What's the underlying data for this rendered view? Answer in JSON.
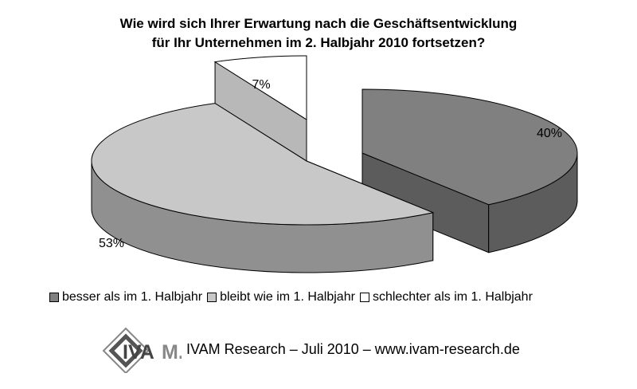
{
  "title": {
    "line1": "Wie wird sich Ihrer Erwartung nach die Geschäftsentwicklung",
    "line2": "für Ihr Unternehmen im 2. Halbjahr 2010 fortsetzen?"
  },
  "chart_data": {
    "type": "pie",
    "style": "3d-exploded",
    "title": "Wie wird sich Ihrer Erwartung nach die Geschäftsentwicklung für Ihr Unternehmen im 2. Halbjahr 2010 fortsetzen?",
    "slices": [
      {
        "label": "besser als im 1. Halbjahr",
        "value": 40,
        "value_label": "40%",
        "color": "#808080"
      },
      {
        "label": "bleibt wie im 1. Halbjahr",
        "value": 53,
        "value_label": "53%",
        "color": "#c8c8c8"
      },
      {
        "label": "schlechter als im 1. Halbjahr",
        "value": 7,
        "value_label": "7%",
        "color": "#ffffff"
      }
    ],
    "legend_position": "bottom"
  },
  "legend": [
    {
      "label": "besser als im 1. Halbjahr",
      "color": "#808080"
    },
    {
      "label": "bleibt wie im 1. Halbjahr",
      "color": "#c8c8c8"
    },
    {
      "label": "schlechter als im 1. Halbjahr",
      "color": "#ffffff"
    }
  ],
  "footer": {
    "logo_text": "IVAM.",
    "text": "IVAM Research – Juli 2010 – www.ivam-research.de"
  }
}
